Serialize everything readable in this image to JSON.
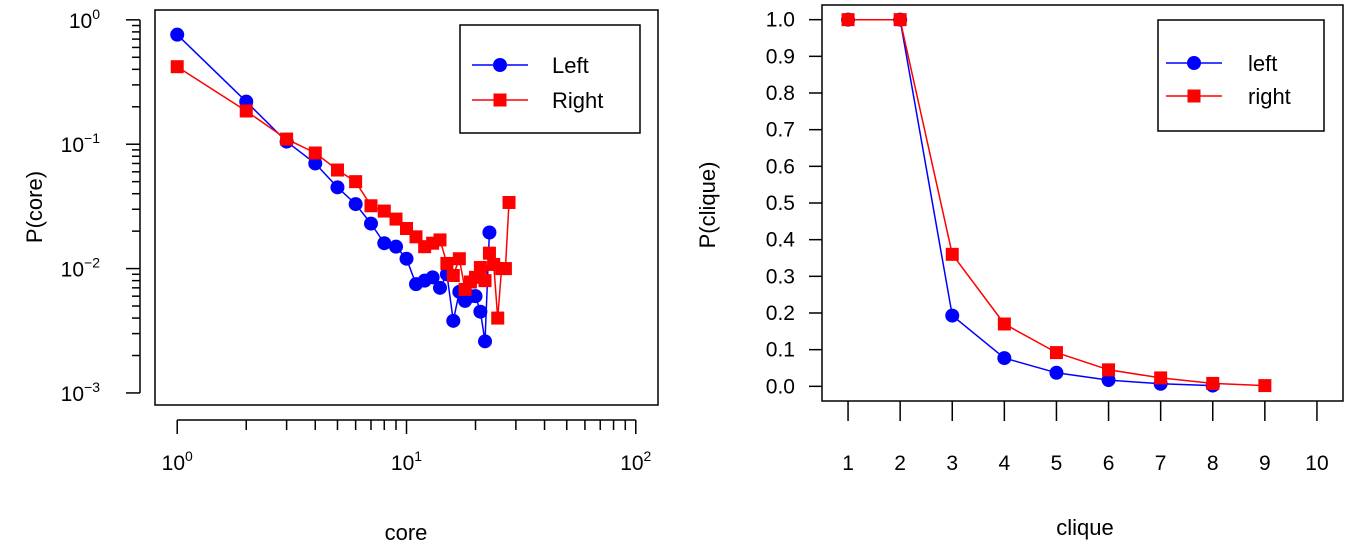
{
  "chart_data": [
    {
      "type": "line",
      "xlabel": "core",
      "ylabel": "P(core)",
      "x_scale": "log",
      "y_scale": "log",
      "xlim": [
        0.8,
        125
      ],
      "ylim": [
        0.0008,
        1.2
      ],
      "x_ticks": [
        {
          "value": 1,
          "base": "10",
          "exp": "0"
        },
        {
          "value": 10,
          "base": "10",
          "exp": "1"
        },
        {
          "value": 100,
          "base": "10",
          "exp": "2"
        }
      ],
      "y_ticks": [
        {
          "value": 1,
          "base": "10",
          "exp": "0"
        },
        {
          "value": 0.1,
          "base": "10",
          "exp": "−1"
        },
        {
          "value": 0.01,
          "base": "10",
          "exp": "−2"
        },
        {
          "value": 0.001,
          "base": "10",
          "exp": "−3"
        }
      ],
      "grid": false,
      "legend_position": "top-right",
      "series": [
        {
          "name": "Left",
          "color": "#0000ff",
          "marker": "circle",
          "x": [
            1,
            2,
            3,
            4,
            5,
            6,
            7,
            8,
            9,
            10,
            11,
            12,
            13,
            14,
            15,
            16,
            17,
            18,
            19,
            20,
            21,
            22,
            23
          ],
          "y": [
            0.76,
            0.22,
            0.105,
            0.07,
            0.045,
            0.033,
            0.023,
            0.016,
            0.015,
            0.012,
            0.0075,
            0.008,
            0.0085,
            0.007,
            0.009,
            0.0038,
            0.0065,
            0.0055,
            0.006,
            0.006,
            0.0045,
            0.0026,
            0.0195
          ]
        },
        {
          "name": "Right",
          "color": "#ff0000",
          "marker": "square",
          "x": [
            1,
            2,
            3,
            4,
            5,
            6,
            7,
            8,
            9,
            10,
            11,
            12,
            13,
            14,
            15,
            16,
            17,
            18,
            19,
            20,
            21,
            22,
            23,
            24,
            25,
            26,
            27,
            28
          ],
          "y": [
            0.42,
            0.185,
            0.11,
            0.085,
            0.062,
            0.05,
            0.032,
            0.029,
            0.025,
            0.021,
            0.018,
            0.015,
            0.016,
            0.017,
            0.011,
            0.0088,
            0.012,
            0.0068,
            0.0078,
            0.0085,
            0.0102,
            0.008,
            0.0133,
            0.0108,
            0.004,
            0.01,
            0.01,
            0.034
          ]
        }
      ]
    },
    {
      "type": "line",
      "xlabel": "clique",
      "ylabel": "P(clique)",
      "xlim": [
        0.5,
        10.5
      ],
      "ylim": [
        -0.04,
        1.04
      ],
      "x_ticks": [
        1,
        2,
        3,
        4,
        5,
        6,
        7,
        8,
        9,
        10
      ],
      "y_ticks": [
        "0.0",
        "0.1",
        "0.2",
        "0.3",
        "0.4",
        "0.5",
        "0.6",
        "0.7",
        "0.8",
        "0.9",
        "1.0"
      ],
      "grid": false,
      "legend_position": "top-right",
      "series": [
        {
          "name": "left",
          "color": "#0000ff",
          "marker": "circle",
          "x": [
            1,
            2,
            3,
            4,
            5,
            6,
            7,
            8
          ],
          "y": [
            1.0,
            1.0,
            0.193,
            0.077,
            0.037,
            0.017,
            0.007,
            0.002
          ]
        },
        {
          "name": "right",
          "color": "#ff0000",
          "marker": "square",
          "x": [
            1,
            2,
            3,
            4,
            5,
            6,
            7,
            8,
            9
          ],
          "y": [
            1.0,
            1.0,
            0.36,
            0.17,
            0.092,
            0.045,
            0.023,
            0.008,
            0.002
          ]
        }
      ]
    }
  ]
}
